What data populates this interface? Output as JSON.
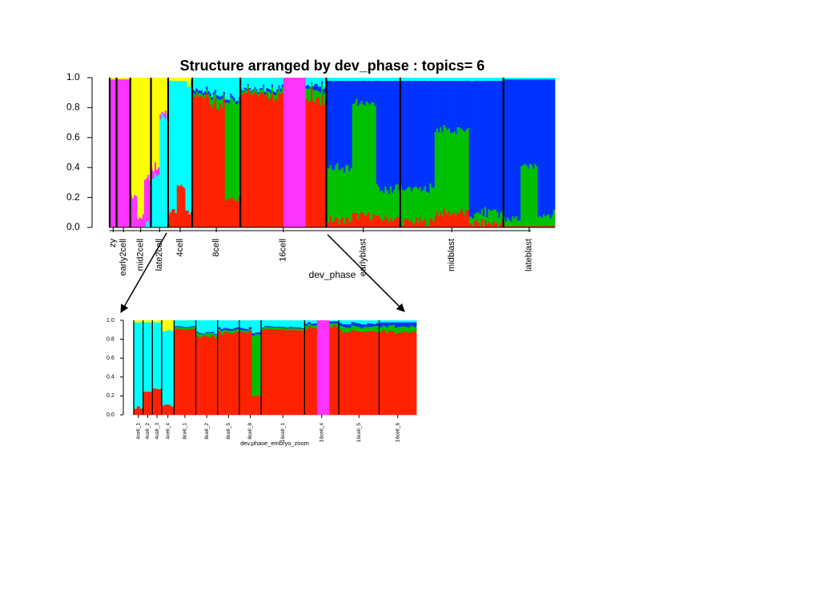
{
  "chart_data": [
    {
      "id": "top",
      "type": "bar",
      "title": "Structure arranged by dev_phase : topics= 6",
      "xlabel": "dev_phase",
      "ylabel": "",
      "ylim": [
        0,
        1
      ],
      "y_ticks": [
        "0.0",
        "0.2",
        "0.4",
        "0.6",
        "0.8",
        "1.0"
      ],
      "y_tick_values": [
        0,
        0.2,
        0.4,
        0.6,
        0.8,
        1.0
      ],
      "topic_colors": [
        "#ff2200",
        "#00c000",
        "#0033ff",
        "#00ffff",
        "#ff33ff",
        "#ffff00"
      ],
      "groups": [
        {
          "label": "zy",
          "count": 4,
          "profile": [
            [
              0,
              0,
              0,
              0,
              0.99,
              0.01
            ]
          ]
        },
        {
          "label": "early2cell",
          "count": 8,
          "profile": [
            [
              0,
              0,
              0,
              0,
              0.99,
              0.01
            ]
          ]
        },
        {
          "label": "mid2cell",
          "count": 12,
          "profile": [
            [
              0,
              0,
              0,
              0,
              0.22,
              0.78
            ],
            [
              0,
              0,
              0,
              0,
              0.07,
              0.93
            ],
            [
              0,
              0,
              0,
              0.03,
              0.3,
              0.67
            ]
          ]
        },
        {
          "label": "late2cell",
          "count": 10,
          "profile": [
            [
              0,
              0,
              0,
              0.35,
              0.05,
              0.6
            ],
            [
              0,
              0,
              0,
              0.75,
              0.03,
              0.22
            ]
          ]
        },
        {
          "label": "4cell",
          "count": 14,
          "profile": [
            [
              0.1,
              0,
              0,
              0.88,
              0,
              0.02
            ],
            [
              0.27,
              0,
              0,
              0.71,
              0,
              0.02
            ],
            [
              0.1,
              0,
              0,
              0.86,
              0,
              0.04
            ]
          ]
        },
        {
          "label": "8cell",
          "count": 28,
          "profile": [
            [
              0.88,
              0.02,
              0.02,
              0.08,
              0,
              0
            ],
            [
              0.83,
              0.05,
              0.02,
              0.1,
              0,
              0
            ],
            [
              0.2,
              0.65,
              0.02,
              0.13,
              0,
              0
            ]
          ]
        },
        {
          "label": "16cell",
          "count": 50,
          "profile": [
            [
              0.9,
              0.02,
              0.01,
              0.07,
              0,
              0
            ],
            [
              0.88,
              0.03,
              0.02,
              0.07,
              0,
              0
            ],
            [
              0,
              0,
              0,
              0,
              1,
              0
            ],
            [
              0.86,
              0.06,
              0.03,
              0.05,
              0,
              0
            ]
          ]
        },
        {
          "label": "earlyblast",
          "count": 43,
          "profile": [
            [
              0.05,
              0.35,
              0.58,
              0.02,
              0,
              0
            ],
            [
              0.08,
              0.75,
              0.15,
              0.02,
              0,
              0
            ],
            [
              0.06,
              0.2,
              0.72,
              0.02,
              0,
              0
            ]
          ]
        },
        {
          "label": "midblast",
          "count": 60,
          "profile": [
            [
              0.04,
              0.22,
              0.72,
              0.02,
              0,
              0
            ],
            [
              0.1,
              0.55,
              0.33,
              0.02,
              0,
              0
            ],
            [
              0.03,
              0.07,
              0.88,
              0.02,
              0,
              0
            ]
          ]
        },
        {
          "label": "lateblast",
          "count": 30,
          "profile": [
            [
              0.01,
              0.05,
              0.93,
              0.01,
              0,
              0
            ],
            [
              0.01,
              0.4,
              0.58,
              0.01,
              0,
              0
            ],
            [
              0.01,
              0.08,
              0.9,
              0.01,
              0,
              0
            ]
          ]
        }
      ]
    },
    {
      "id": "zoom",
      "type": "bar",
      "title": "",
      "xlabel": "dev.phase_embryo_zoom",
      "ylabel": "",
      "ylim": [
        0,
        1
      ],
      "y_ticks": [
        "0.0",
        "0.2",
        "0.4",
        "0.6",
        "0.8",
        "1.0"
      ],
      "y_tick_values": [
        0,
        0.2,
        0.4,
        0.6,
        0.8,
        1.0
      ],
      "topic_colors": [
        "#ff2200",
        "#00c000",
        "#0033ff",
        "#00ffff",
        "#ff33ff",
        "#ffff00"
      ],
      "groups": [
        {
          "label": "4cell_1",
          "count": 3,
          "profile": [
            [
              0.08,
              0,
              0,
              0.9,
              0,
              0.02
            ]
          ]
        },
        {
          "label": "4cell_2",
          "count": 3,
          "profile": [
            [
              0.25,
              0,
              0,
              0.73,
              0,
              0.02
            ]
          ]
        },
        {
          "label": "4cell_3",
          "count": 3,
          "profile": [
            [
              0.28,
              0,
              0,
              0.7,
              0,
              0.02
            ]
          ]
        },
        {
          "label": "4cell_4",
          "count": 4,
          "profile": [
            [
              0.1,
              0,
              0,
              0.8,
              0,
              0.1
            ]
          ]
        },
        {
          "label": "8cell_1",
          "count": 7,
          "profile": [
            [
              0.9,
              0.02,
              0.01,
              0.07,
              0,
              0
            ]
          ]
        },
        {
          "label": "8cell_2",
          "count": 7,
          "profile": [
            [
              0.83,
              0.03,
              0.01,
              0.13,
              0,
              0
            ]
          ]
        },
        {
          "label": "8cell_5",
          "count": 7,
          "profile": [
            [
              0.87,
              0.03,
              0.02,
              0.08,
              0,
              0
            ]
          ]
        },
        {
          "label": "8cell_8",
          "count": 7,
          "profile": [
            [
              0.88,
              0.02,
              0.02,
              0.08,
              0,
              0
            ],
            [
              0.2,
              0.65,
              0.02,
              0.13,
              0,
              0
            ]
          ]
        },
        {
          "label": "16cell_1",
          "count": 14,
          "profile": [
            [
              0.9,
              0.02,
              0.01,
              0.07,
              0,
              0
            ]
          ]
        },
        {
          "label": "16cell_4",
          "count": 11,
          "profile": [
            [
              0.92,
              0.03,
              0.02,
              0.03,
              0,
              0
            ],
            [
              0,
              0,
              0,
              0,
              1,
              0
            ],
            [
              0.94,
              0.03,
              0.02,
              0.01,
              0,
              0
            ]
          ]
        },
        {
          "label": "16cell_5",
          "count": 13,
          "profile": [
            [
              0.89,
              0.05,
              0.03,
              0.03,
              0,
              0
            ]
          ]
        },
        {
          "label": "16cell_6",
          "count": 12,
          "profile": [
            [
              0.88,
              0.06,
              0.04,
              0.02,
              0,
              0
            ]
          ]
        }
      ]
    }
  ]
}
